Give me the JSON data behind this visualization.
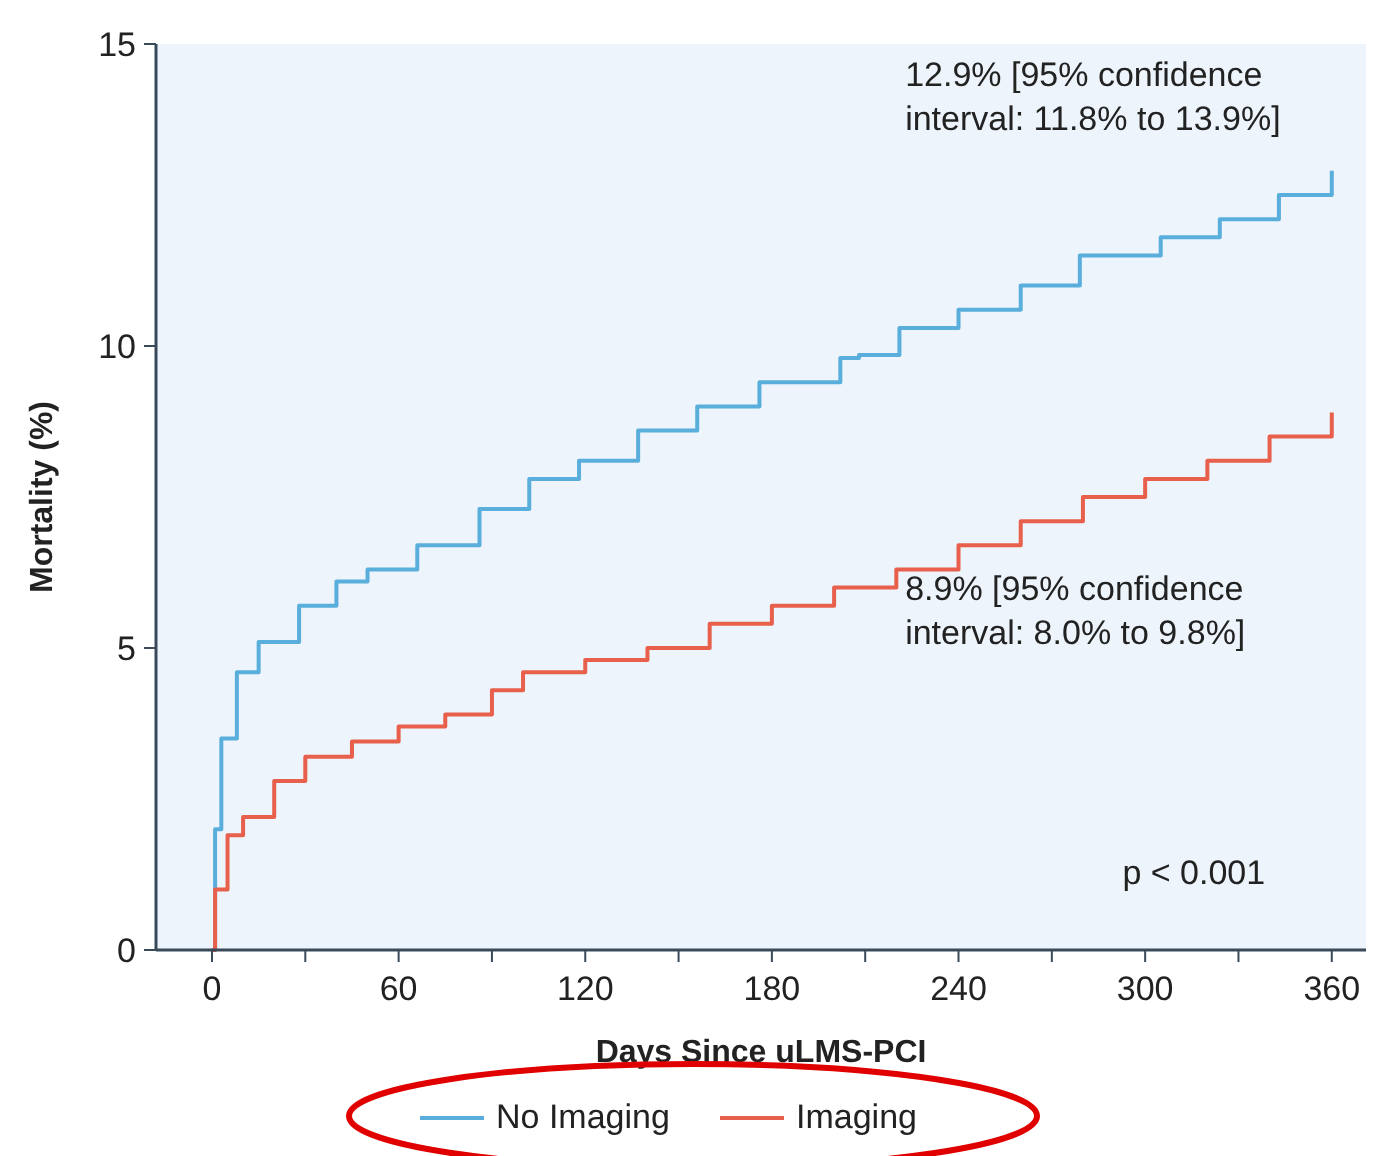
{
  "chart_data": {
    "type": "step",
    "xlabel": "Days Since uLMS-PCI",
    "ylabel": "Mortality (%)",
    "xlim": [
      -18,
      371
    ],
    "ylim": [
      0,
      15
    ],
    "xticks": [
      0,
      {
        "value": 30,
        "label": null
      },
      60,
      {
        "value": 90,
        "label": null
      },
      120,
      {
        "value": 150,
        "label": null
      },
      180,
      {
        "value": 210,
        "label": null
      },
      240,
      {
        "value": 270,
        "label": null
      },
      300,
      {
        "value": 330,
        "label": null
      },
      360
    ],
    "yticks": [
      0,
      5,
      10,
      15
    ],
    "grid": false,
    "legend": "bottom",
    "line_style": "solid",
    "annotations": [
      "12.9% [95% confidence interval: 11.8% to 13.9%]",
      "8.9% [95% confidence interval: 8.0% to 9.8%]",
      "p < 0.001"
    ],
    "series": [
      {
        "name": "No Imaging",
        "color": "#5aaedc",
        "x": [
          0,
          1,
          3,
          8,
          15,
          28,
          40,
          50,
          66,
          86,
          102,
          118,
          137,
          156,
          176,
          202,
          208,
          221,
          240,
          260,
          279,
          305,
          324,
          343,
          360
        ],
        "values": [
          0,
          2.0,
          3.5,
          4.6,
          5.1,
          5.7,
          6.1,
          6.3,
          6.7,
          7.3,
          7.8,
          8.1,
          8.6,
          9.0,
          9.4,
          9.8,
          9.85,
          10.3,
          10.6,
          11.0,
          11.5,
          11.8,
          12.1,
          12.5,
          12.9
        ]
      },
      {
        "name": "Imaging",
        "color": "#e8604c",
        "x": [
          0,
          1,
          5,
          10,
          20,
          30,
          45,
          60,
          75,
          90,
          100,
          120,
          140,
          160,
          180,
          200,
          220,
          240,
          260,
          280,
          300,
          320,
          340,
          360
        ],
        "values": [
          0,
          1.0,
          1.9,
          2.2,
          2.8,
          3.2,
          3.45,
          3.7,
          3.9,
          4.3,
          4.6,
          4.8,
          5.0,
          5.4,
          5.7,
          6.0,
          6.3,
          6.7,
          7.1,
          7.5,
          7.8,
          8.1,
          8.5,
          8.9
        ]
      }
    ]
  }
}
